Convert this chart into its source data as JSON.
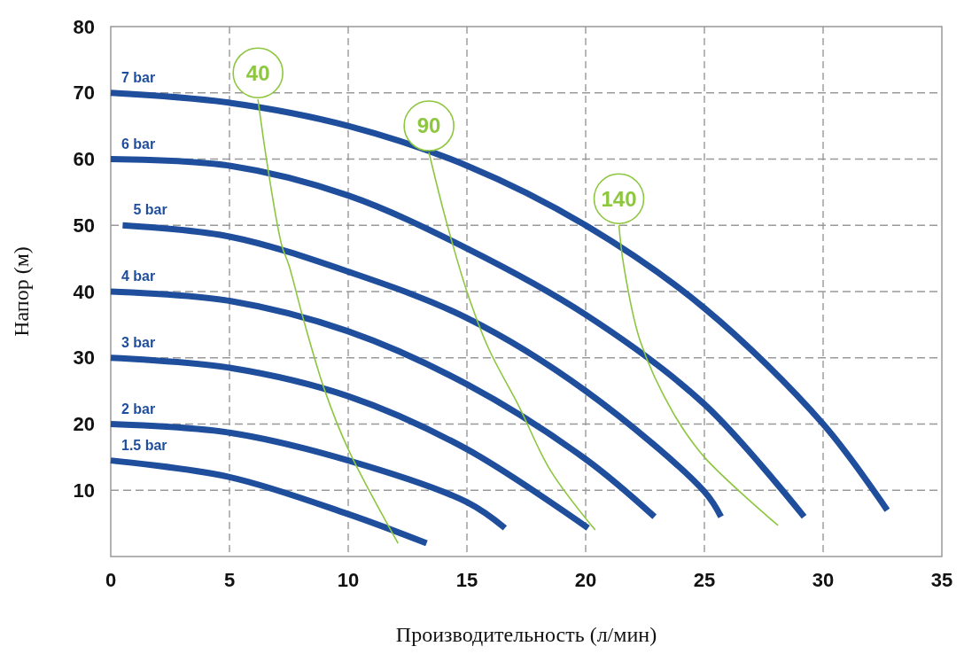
{
  "chart_data": {
    "type": "line",
    "xlabel": "Производительность (л/мин)",
    "ylabel": "Напор (м)",
    "xlim": [
      0,
      35
    ],
    "xticks": [
      0,
      5,
      10,
      15,
      20,
      25,
      30,
      35
    ],
    "ylim": [
      0,
      80
    ],
    "yticks": [
      10,
      20,
      30,
      40,
      50,
      60,
      70,
      80
    ],
    "grid": true,
    "marker": "none",
    "line_style": "solid",
    "series": [
      {
        "name": "7 bar",
        "color": "#1f4e9c",
        "x": [
          0,
          5,
          10,
          15,
          20,
          25,
          30,
          32.7
        ],
        "values": [
          70,
          68.5,
          65,
          59,
          50,
          37.5,
          20,
          7
        ]
      },
      {
        "name": "6 bar",
        "color": "#1f4e9c",
        "x": [
          0,
          5,
          10,
          15,
          20,
          25,
          29.2
        ],
        "values": [
          60,
          59,
          54.5,
          46.5,
          36.5,
          23,
          6
        ]
      },
      {
        "name": "5 bar",
        "color": "#1f4e9c",
        "x": [
          0.5,
          5,
          10,
          15,
          20,
          25,
          25.7
        ],
        "values": [
          50,
          48.3,
          43,
          36,
          25,
          9.8,
          6
        ]
      },
      {
        "name": "4 bar",
        "color": "#1f4e9c",
        "x": [
          0,
          5,
          10,
          15,
          20,
          22.9
        ],
        "values": [
          40,
          38.6,
          34,
          26,
          14.7,
          6
        ]
      },
      {
        "name": "3 bar",
        "color": "#1f4e9c",
        "x": [
          0,
          5,
          10,
          15,
          20.1
        ],
        "values": [
          30,
          28.5,
          24.2,
          16.2,
          4.3
        ]
      },
      {
        "name": "2 bar",
        "color": "#1f4e9c",
        "x": [
          0,
          5,
          10,
          15,
          16.6
        ],
        "values": [
          20,
          18.7,
          14.5,
          8.2,
          4.3
        ]
      },
      {
        "name": "1.5 bar",
        "color": "#1f4e9c",
        "x": [
          0,
          5,
          10,
          13.3
        ],
        "values": [
          14.5,
          12,
          6.4,
          2
        ]
      },
      {
        "name": "40",
        "color": "#8dc63f",
        "x": [
          6.2,
          6.6,
          7.2,
          7.5,
          8.1,
          9,
          10,
          12.1
        ],
        "values": [
          69,
          59,
          47,
          44,
          36,
          25.2,
          16.2,
          2
        ]
      },
      {
        "name": "90",
        "color": "#8dc63f",
        "x": [
          13.4,
          14.1,
          15,
          15.9,
          17.2,
          18.5,
          20.4
        ],
        "values": [
          61,
          51,
          40,
          31.5,
          22.6,
          13.1,
          4
        ]
      },
      {
        "name": "140",
        "color": "#8dc63f",
        "x": [
          21.4,
          21.6,
          22.3,
          23.7,
          25,
          28.1
        ],
        "values": [
          50,
          44,
          32.5,
          21.6,
          15,
          4.7
        ]
      }
    ]
  }
}
